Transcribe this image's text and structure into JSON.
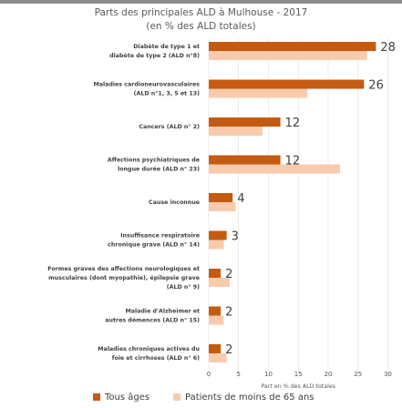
{
  "title_line1": "Parts des principales ALD à Mulhouse - 2017",
  "title_line2": "(en % des ALD totales)",
  "colors": {
    "series1": "#c55a11",
    "series2": "#f8cbad",
    "text": "#404040",
    "grid": "#d9d9d9",
    "topbar": "#8c8c8c"
  },
  "chart_data": {
    "type": "bar",
    "orientation": "horizontal",
    "categories": [
      [
        "Diabète de type 1 et",
        "diabète de type 2 (ALD n°8)"
      ],
      [
        "Maladies cardioneurovasculaires",
        "(ALD n°1, 3, 5 et 13)"
      ],
      [
        "Cancers (ALD n° 2)"
      ],
      [
        "Affections psychiatriques de",
        "longue durée (ALD n° 23)"
      ],
      [
        "Cause inconnue"
      ],
      [
        "Insuffisance respiratoire",
        "chronique grave (ALD n° 14)"
      ],
      [
        "Formes graves des affections neurologiques et",
        "musculaires (dont myopathie), épilepsie grave",
        "(ALD n° 9)"
      ],
      [
        "Maladie d'Alzheimer et",
        "autres démences (ALD n° 15)"
      ],
      [
        "Maladies chroniques actives du",
        "foie et cirrhoses (ALD n° 6)"
      ]
    ],
    "series": [
      {
        "name": "Tous âges",
        "values": [
          28,
          26,
          12,
          12,
          4,
          3,
          2,
          2,
          2
        ]
      },
      {
        "name": "Patients de moins de 65 ans",
        "values": [
          26.5,
          16.5,
          9,
          22,
          4.5,
          2.5,
          3.5,
          2.5,
          3
        ]
      }
    ],
    "data_labels": [
      "28",
      "26",
      "12",
      "12",
      "4",
      "3",
      "2",
      "2",
      "2"
    ],
    "xlabel": "Part en % des ALD totales",
    "xlim": [
      0,
      30
    ],
    "xticks": [
      0,
      5,
      10,
      15,
      20,
      25,
      30
    ],
    "legend_position": "bottom"
  }
}
